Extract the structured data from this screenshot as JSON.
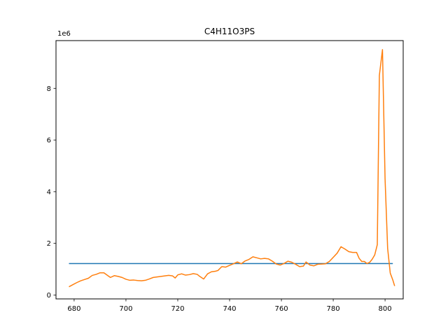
{
  "chart_data": {
    "type": "line",
    "title": "C4H11O3PS",
    "xlabel": "",
    "ylabel": "",
    "y_offset_label": "1e6",
    "xlim": [
      673,
      807
    ],
    "ylim": [
      -150000,
      9850000
    ],
    "x_ticks": [
      680,
      700,
      720,
      740,
      760,
      780,
      800
    ],
    "y_ticks": [
      0,
      2,
      4,
      6,
      8
    ],
    "y_tick_scale": 1000000,
    "grid": false,
    "series": [
      {
        "color": "#1f77b4",
        "points": [
          [
            678,
            1220000
          ],
          [
            803,
            1220000
          ]
        ]
      },
      {
        "color": "#ff7f0e",
        "points": [
          [
            678,
            320000
          ],
          [
            679.5,
            400000
          ],
          [
            681,
            480000
          ],
          [
            682.5,
            550000
          ],
          [
            684,
            600000
          ],
          [
            685.5,
            650000
          ],
          [
            687,
            760000
          ],
          [
            688.5,
            800000
          ],
          [
            690,
            860000
          ],
          [
            691.5,
            860000
          ],
          [
            693,
            750000
          ],
          [
            694,
            680000
          ],
          [
            695.5,
            750000
          ],
          [
            697,
            720000
          ],
          [
            698.5,
            680000
          ],
          [
            700,
            610000
          ],
          [
            701.5,
            570000
          ],
          [
            703,
            580000
          ],
          [
            704.5,
            560000
          ],
          [
            706,
            550000
          ],
          [
            707.5,
            570000
          ],
          [
            709,
            620000
          ],
          [
            710.5,
            680000
          ],
          [
            712,
            700000
          ],
          [
            713.5,
            720000
          ],
          [
            715,
            740000
          ],
          [
            716.5,
            760000
          ],
          [
            718,
            740000
          ],
          [
            719,
            660000
          ],
          [
            720,
            780000
          ],
          [
            721.5,
            820000
          ],
          [
            723,
            770000
          ],
          [
            724.5,
            790000
          ],
          [
            726,
            830000
          ],
          [
            727.5,
            800000
          ],
          [
            728.5,
            720000
          ],
          [
            730,
            620000
          ],
          [
            731.5,
            820000
          ],
          [
            733,
            900000
          ],
          [
            734.5,
            920000
          ],
          [
            735.5,
            950000
          ],
          [
            737,
            1100000
          ],
          [
            738.5,
            1080000
          ],
          [
            740,
            1150000
          ],
          [
            741.5,
            1210000
          ],
          [
            743,
            1280000
          ],
          [
            744.5,
            1210000
          ],
          [
            746,
            1320000
          ],
          [
            747.5,
            1380000
          ],
          [
            749,
            1480000
          ],
          [
            750.5,
            1440000
          ],
          [
            752,
            1400000
          ],
          [
            753.5,
            1420000
          ],
          [
            755,
            1400000
          ],
          [
            756.5,
            1310000
          ],
          [
            758,
            1200000
          ],
          [
            759.5,
            1160000
          ],
          [
            761,
            1220000
          ],
          [
            762.5,
            1310000
          ],
          [
            764,
            1270000
          ],
          [
            765.5,
            1190000
          ],
          [
            767,
            1100000
          ],
          [
            768.5,
            1120000
          ],
          [
            769.5,
            1280000
          ],
          [
            771,
            1160000
          ],
          [
            772.5,
            1130000
          ],
          [
            774,
            1190000
          ],
          [
            775.5,
            1200000
          ],
          [
            777,
            1210000
          ],
          [
            778.5,
            1300000
          ],
          [
            780,
            1460000
          ],
          [
            781.5,
            1620000
          ],
          [
            783,
            1870000
          ],
          [
            784.5,
            1780000
          ],
          [
            786,
            1680000
          ],
          [
            787.5,
            1650000
          ],
          [
            789,
            1650000
          ],
          [
            790,
            1420000
          ],
          [
            791,
            1300000
          ],
          [
            792,
            1300000
          ],
          [
            793,
            1220000
          ],
          [
            794,
            1260000
          ],
          [
            795,
            1380000
          ],
          [
            796,
            1550000
          ],
          [
            797,
            1950000
          ],
          [
            797.8,
            8500000
          ],
          [
            799,
            9500000
          ],
          [
            800,
            4500000
          ],
          [
            801,
            1800000
          ],
          [
            802,
            850000
          ],
          [
            803,
            580000
          ],
          [
            803.7,
            350000
          ]
        ]
      }
    ]
  }
}
